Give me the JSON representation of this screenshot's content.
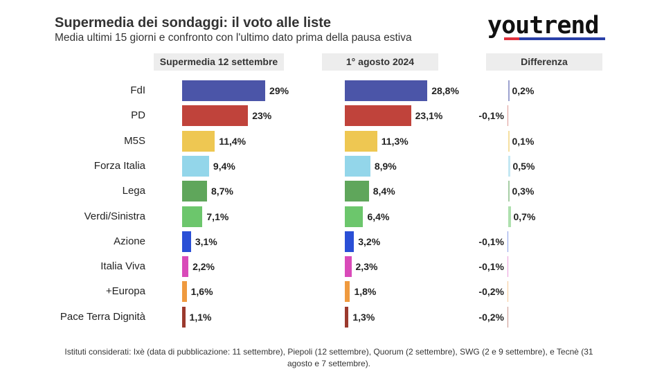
{
  "title": "Supermedia dei sondaggi: il voto alle liste",
  "subtitle": "Media ultimi 15 giorni e confronto con l'ultimo dato prima della pausa estiva",
  "logo": "youtrend",
  "footnote": "Istituti considerati: Ixè (data di pubblicazione: 11 settembre), Piepoli (12 settembre), Quorum (2 settembre), SWG (2 e 9 settembre), e Tecnè (31 agosto e 7 settembre).",
  "chart_data": {
    "type": "bar",
    "columns": [
      "Supermedia 12 settembre",
      "1° agosto 2024",
      "Differenza"
    ],
    "categories": [
      "FdI",
      "PD",
      "M5S",
      "Forza Italia",
      "Lega",
      "Verdi/Sinistra",
      "Azione",
      "Italia Viva",
      "+Europa",
      "Pace Terra Dignità"
    ],
    "colors": [
      "#4b55a8",
      "#c0433b",
      "#eec752",
      "#93d6ea",
      "#5fa65b",
      "#6cc66c",
      "#2a4fd6",
      "#d94ab9",
      "#ef9a3f",
      "#9b3a2e"
    ],
    "series": [
      {
        "name": "Supermedia 12 settembre",
        "values": [
          29,
          23,
          11.4,
          9.4,
          8.7,
          7.1,
          3.1,
          2.2,
          1.6,
          1.1
        ],
        "labels": [
          "29%",
          "23%",
          "11,4%",
          "9,4%",
          "8,7%",
          "7,1%",
          "3,1%",
          "2,2%",
          "1,6%",
          "1,1%"
        ]
      },
      {
        "name": "1° agosto 2024",
        "values": [
          28.8,
          23.1,
          11.3,
          8.9,
          8.4,
          6.4,
          3.2,
          2.3,
          1.8,
          1.3
        ],
        "labels": [
          "28,8%",
          "23,1%",
          "11,3%",
          "8,9%",
          "8,4%",
          "6,4%",
          "3,2%",
          "2,3%",
          "1,8%",
          "1,3%"
        ]
      },
      {
        "name": "Differenza",
        "values": [
          0.2,
          -0.1,
          0.1,
          0.5,
          0.3,
          0.7,
          -0.1,
          -0.1,
          -0.2,
          -0.2
        ],
        "labels": [
          "0,2%",
          "-0,1%",
          "0,1%",
          "0,5%",
          "0,3%",
          "0,7%",
          "-0,1%",
          "-0,1%",
          "-0,2%",
          "-0,2%"
        ]
      }
    ]
  }
}
